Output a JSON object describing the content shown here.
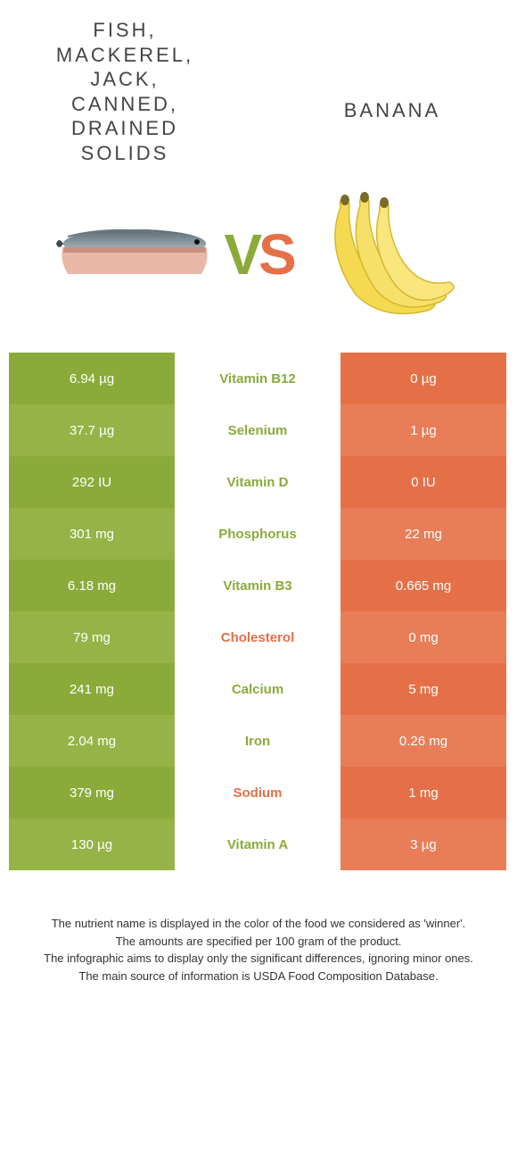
{
  "colors": {
    "green": "#8aab3a",
    "green_alt": "#95b346",
    "orange": "#e57048",
    "orange_alt": "#e87d58",
    "white": "#ffffff",
    "text": "#444444"
  },
  "foods": {
    "left": {
      "title": "Fish, mackerel, jack, canned, drained solids",
      "image": "mackerel"
    },
    "right": {
      "title": "Banana",
      "image": "banana"
    }
  },
  "vs": {
    "v": "V",
    "s": "S"
  },
  "rows": [
    {
      "left": "6.94 µg",
      "nutrient": "Vitamin B12",
      "right": "0 µg",
      "winner": "left"
    },
    {
      "left": "37.7 µg",
      "nutrient": "Selenium",
      "right": "1 µg",
      "winner": "left"
    },
    {
      "left": "292 IU",
      "nutrient": "Vitamin D",
      "right": "0 IU",
      "winner": "left"
    },
    {
      "left": "301 mg",
      "nutrient": "Phosphorus",
      "right": "22 mg",
      "winner": "left"
    },
    {
      "left": "6.18 mg",
      "nutrient": "Vitamin B3",
      "right": "0.665 mg",
      "winner": "left"
    },
    {
      "left": "79 mg",
      "nutrient": "Cholesterol",
      "right": "0 mg",
      "winner": "right"
    },
    {
      "left": "241 mg",
      "nutrient": "Calcium",
      "right": "5 mg",
      "winner": "left"
    },
    {
      "left": "2.04 mg",
      "nutrient": "Iron",
      "right": "0.26 mg",
      "winner": "left"
    },
    {
      "left": "379 mg",
      "nutrient": "Sodium",
      "right": "1 mg",
      "winner": "right"
    },
    {
      "left": "130 µg",
      "nutrient": "Vitamin A",
      "right": "3 µg",
      "winner": "left"
    }
  ],
  "footer": [
    "The nutrient name is displayed in the color of the food we considered as 'winner'.",
    "The amounts are specified per 100 gram of the product.",
    "The infographic aims to display only the significant differences, ignoring minor ones.",
    "The main source of information is USDA Food Composition Database."
  ]
}
